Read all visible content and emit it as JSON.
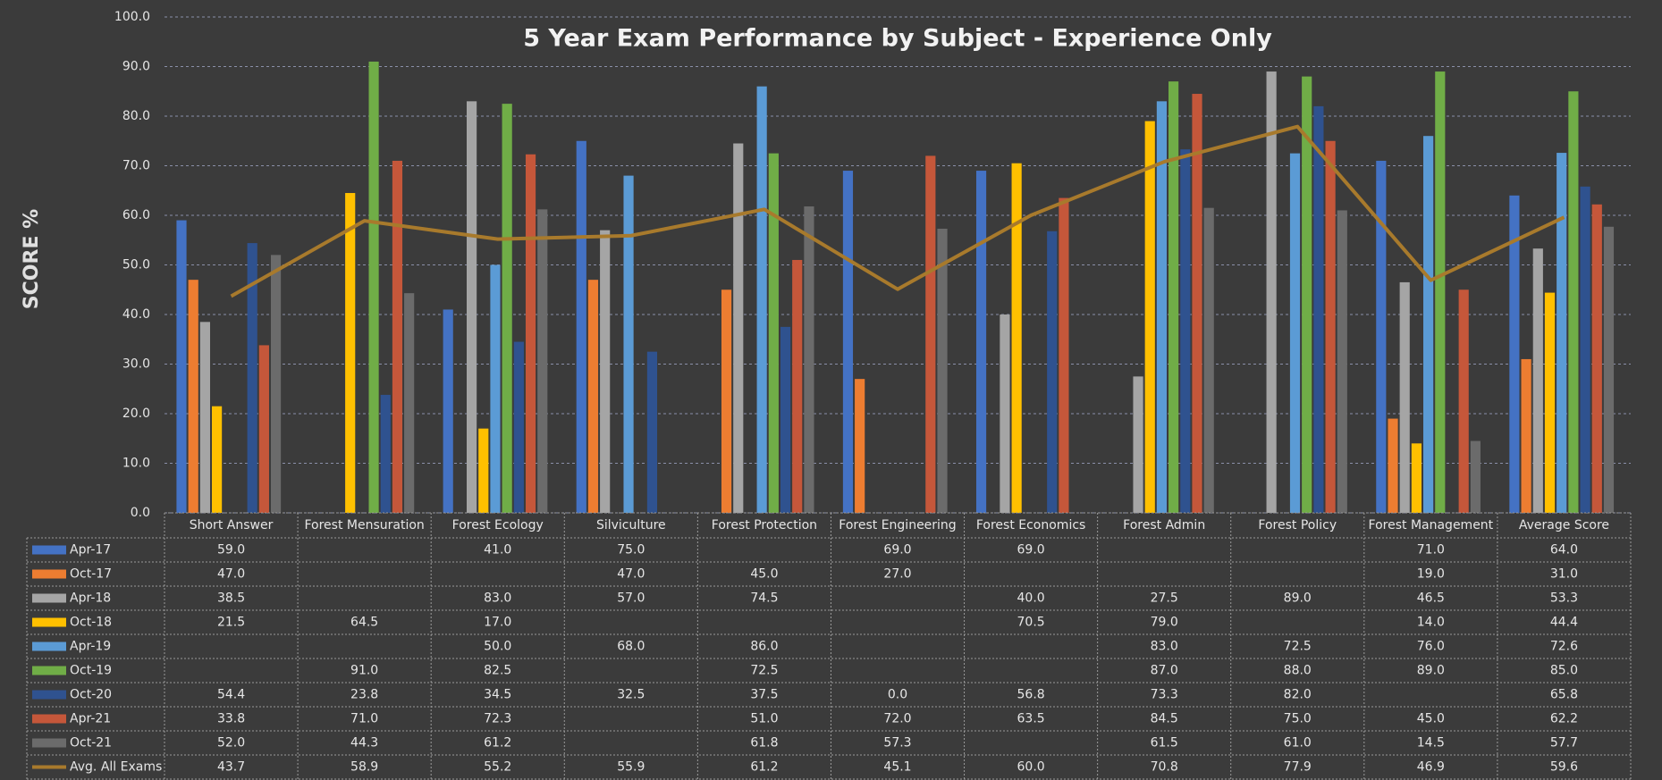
{
  "chart_data": {
    "type": "bar",
    "title": "5 Year Exam Performance by Subject - Experience Only",
    "y_label": "SCORE %",
    "categories": [
      "Short Answer",
      "Forest Mensuration",
      "Forest Ecology",
      "Silviculture",
      "Forest Protection",
      "Forest Engineering",
      "Forest Economics",
      "Forest Admin",
      "Forest Policy",
      "Forest Management",
      "Average Score"
    ],
    "ylim": [
      0,
      100
    ],
    "yticks": [
      {
        "value": 0,
        "label": "0.0"
      },
      {
        "value": 10,
        "label": "10.0"
      },
      {
        "value": 20,
        "label": "20.0"
      },
      {
        "value": 30,
        "label": "30.0"
      },
      {
        "value": 40,
        "label": "40.0"
      },
      {
        "value": 50,
        "label": "50.0"
      },
      {
        "value": 60,
        "label": "60.0"
      },
      {
        "value": 70,
        "label": "70.0"
      },
      {
        "value": 80,
        "label": "80.0"
      },
      {
        "value": 90,
        "label": "90.0"
      },
      {
        "value": 100,
        "label": "100.0"
      }
    ],
    "grid": true,
    "series": [
      {
        "name": "Apr-17",
        "color": "#4472c4",
        "values": [
          59.0,
          null,
          41.0,
          75.0,
          null,
          69.0,
          69.0,
          null,
          null,
          71.0,
          64.0
        ],
        "value_labels": [
          "59.0",
          null,
          "41.0",
          "75.0",
          null,
          "69.0",
          "69.0",
          null,
          null,
          "71.0",
          "64.0"
        ]
      },
      {
        "name": "Oct-17",
        "color": "#ed7d31",
        "values": [
          47.0,
          null,
          null,
          47.0,
          45.0,
          27.0,
          null,
          null,
          null,
          19.0,
          31.0
        ],
        "value_labels": [
          "47.0",
          null,
          null,
          "47.0",
          "45.0",
          "27.0",
          null,
          null,
          null,
          "19.0",
          "31.0"
        ]
      },
      {
        "name": "Apr-18",
        "color": "#a5a5a5",
        "values": [
          38.5,
          null,
          83.0,
          57.0,
          74.5,
          null,
          40.0,
          27.5,
          89.0,
          46.5,
          53.3
        ],
        "value_labels": [
          "38.5",
          null,
          "83.0",
          "57.0",
          "74.5",
          null,
          "40.0",
          "27.5",
          "89.0",
          "46.5",
          "53.3"
        ]
      },
      {
        "name": "Oct-18",
        "color": "#ffc000",
        "values": [
          21.5,
          64.5,
          17.0,
          null,
          null,
          null,
          70.5,
          79.0,
          null,
          14.0,
          44.4
        ],
        "value_labels": [
          "21.5",
          "64.5",
          "17.0",
          null,
          null,
          null,
          "70.5",
          "79.0",
          null,
          "14.0",
          "44.4"
        ]
      },
      {
        "name": "Apr-19",
        "color": "#5b9bd5",
        "values": [
          null,
          null,
          50.0,
          68.0,
          86.0,
          null,
          null,
          83.0,
          72.5,
          76.0,
          72.6
        ],
        "value_labels": [
          null,
          null,
          "50.0",
          "68.0",
          "86.0",
          null,
          null,
          "83.0",
          "72.5",
          "76.0",
          "72.6"
        ]
      },
      {
        "name": "Oct-19",
        "color": "#70ad47",
        "values": [
          null,
          91.0,
          82.5,
          null,
          72.5,
          null,
          null,
          87.0,
          88.0,
          89.0,
          85.0
        ],
        "value_labels": [
          null,
          "91.0",
          "82.5",
          null,
          "72.5",
          null,
          null,
          "87.0",
          "88.0",
          "89.0",
          "85.0"
        ]
      },
      {
        "name": "Oct-20",
        "color": "#2f528f",
        "values": [
          54.4,
          23.8,
          34.5,
          32.5,
          37.5,
          0.0,
          56.8,
          73.3,
          82.0,
          null,
          65.8
        ],
        "value_labels": [
          "54.4",
          "23.8",
          "34.5",
          "32.5",
          "37.5",
          "0.0",
          "56.8",
          "73.3",
          "82.0",
          null,
          "65.8"
        ]
      },
      {
        "name": "Apr-21",
        "color": "#c5573a",
        "values": [
          33.8,
          71.0,
          72.3,
          null,
          51.0,
          72.0,
          63.5,
          84.5,
          75.0,
          45.0,
          62.2
        ],
        "value_labels": [
          "33.8",
          "71.0",
          "72.3",
          null,
          "51.0",
          "72.0",
          "63.5",
          "84.5",
          "75.0",
          "45.0",
          "62.2"
        ]
      },
      {
        "name": "Oct-21",
        "color": "#6b6b6b",
        "values": [
          52.0,
          44.3,
          61.2,
          null,
          61.8,
          57.3,
          null,
          61.5,
          61.0,
          14.5,
          57.7
        ],
        "value_labels": [
          "52.0",
          "44.3",
          "61.2",
          null,
          "61.8",
          "57.3",
          null,
          "61.5",
          "61.0",
          "14.5",
          "57.7"
        ]
      },
      {
        "name": "Avg. All Exams",
        "type": "line",
        "color": "#a87a2c",
        "values": [
          43.7,
          58.9,
          55.2,
          55.9,
          61.2,
          45.1,
          60.0,
          70.8,
          77.9,
          46.9,
          59.6
        ],
        "value_labels": [
          "43.7",
          "58.9",
          "55.2",
          "55.9",
          "61.2",
          "45.1",
          "60.0",
          "70.8",
          "77.9",
          "46.9",
          "59.6"
        ]
      }
    ]
  }
}
